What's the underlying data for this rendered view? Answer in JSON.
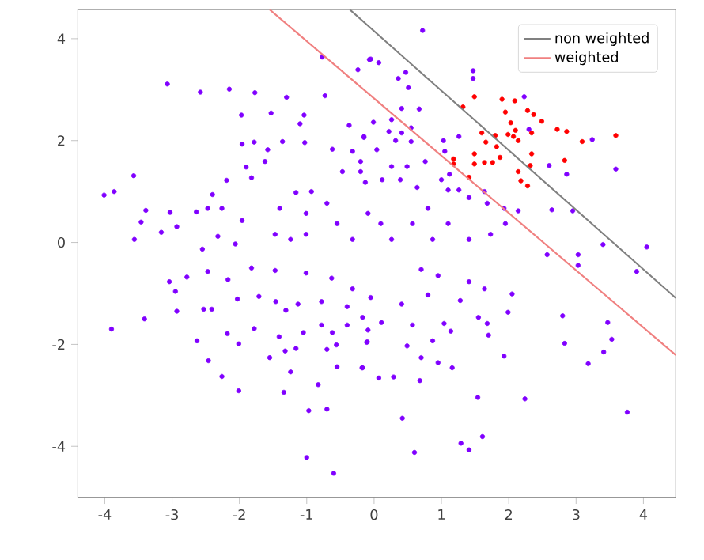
{
  "chart_data": {
    "type": "scatter",
    "xlim": [
      -4.4,
      4.48
    ],
    "ylim": [
      -5,
      4.57
    ],
    "xticks": [
      -4,
      -3,
      -2,
      -1,
      0,
      1,
      2,
      3,
      4
    ],
    "yticks": [
      -4,
      -2,
      0,
      2,
      4
    ],
    "legend": "top right",
    "series": [
      {
        "color": "#8000ff",
        "marker": "circle",
        "x": [
          -3.07,
          -2.58,
          -2.15,
          -1.77,
          -0.77,
          -0.24,
          -0.07,
          -1.97,
          -1.53,
          -1.3,
          -1.04,
          -1.1,
          -0.73,
          -0.37,
          -0.15,
          -1.96,
          -1.78,
          -1.58,
          -1.36,
          -1.03,
          -0.62,
          -1.62,
          -1.9,
          -2.19,
          -1.82,
          -3.57,
          -4.01,
          -3.86,
          -3.39,
          -3.46,
          -3.03,
          -2.93,
          -3.16,
          -3.56,
          -2.64,
          -2.4,
          -2.47,
          -2.26,
          -1.96,
          -2.32,
          -2.06,
          -2.55,
          -1.4,
          -1.16,
          -0.93,
          -1.01,
          -0.7,
          -0.55,
          -1.47,
          -1.24,
          -1.01,
          -0.32,
          -0.09,
          -0.2,
          -0.47,
          -0.32,
          0.72,
          -0.05,
          0.07,
          1.47,
          1.47,
          0.47,
          0.36,
          0.51,
          0.67,
          0.41,
          -0.01,
          0.26,
          0.55,
          0.41,
          0.22,
          -0.15,
          0.04,
          0.32,
          0.55,
          1.03,
          1.26,
          1.05,
          0.76,
          0.49,
          0.26,
          -0.2,
          -0.13,
          0.12,
          0.39,
          1.0,
          1.12,
          0.64,
          1.1,
          1.26,
          1.64,
          1.41,
          1.68,
          1.93,
          2.14,
          2.64,
          2.95,
          2.6,
          2.86,
          3.24,
          3.59,
          2.23,
          2.3,
          4.05,
          3.4,
          0.1,
          0.26,
          0.57,
          0.8,
          1.1,
          1.41,
          1.73,
          1.95,
          0.87,
          2.57,
          3.03,
          -3.9,
          -3.41,
          -2.63,
          -2.46,
          -2.26,
          -2.01,
          -2.18,
          -2.01,
          -1.78,
          -1.34,
          -0.97,
          -0.7,
          -0.83,
          -1.0,
          -0.6,
          -3.04,
          -2.95,
          -2.93,
          -2.78,
          -2.53,
          -2.41,
          -2.47,
          -2.17,
          -2.03,
          -1.71,
          -1.46,
          -1.31,
          -1.13,
          -1.41,
          -1.55,
          -1.32,
          -1.16,
          -1.24,
          -1.05,
          -0.78,
          -0.62,
          -0.56,
          -0.55,
          -0.7,
          -0.4,
          -0.18,
          -0.1,
          -1.82,
          -1.47,
          -1.01,
          -0.63,
          -0.32,
          -0.78,
          -0.4,
          0.7,
          0.95,
          1.41,
          1.64,
          2.05,
          3.03,
          3.9,
          2.8,
          2.83,
          3.47,
          3.53,
          3.41,
          3.18,
          3.76,
          2.24,
          1.54,
          1.93,
          1.61,
          1.29,
          1.41,
          0.6,
          0.42,
          0.68,
          0.95,
          1.16,
          0.29,
          0.07,
          -0.17,
          0.49,
          0.7,
          0.87,
          1.04,
          1.14,
          1.55,
          1.68,
          1.7,
          1.99,
          0.57,
          0.11,
          -0.09,
          -0.11,
          0.41,
          0.8,
          1.28,
          -0.17,
          -0.05
        ],
        "values": [
          3.11,
          2.95,
          3.01,
          2.94,
          3.64,
          3.39,
          3.59,
          2.5,
          2.54,
          2.85,
          2.5,
          2.33,
          2.88,
          2.3,
          2.08,
          1.93,
          1.97,
          1.82,
          1.98,
          1.96,
          1.83,
          1.59,
          1.48,
          1.22,
          1.27,
          1.31,
          0.93,
          1.0,
          0.63,
          0.4,
          0.59,
          0.31,
          0.2,
          0.06,
          0.6,
          0.94,
          0.67,
          0.67,
          0.43,
          0.12,
          -0.03,
          -0.13,
          0.67,
          0.98,
          1.0,
          0.57,
          0.77,
          0.37,
          0.16,
          0.06,
          0.16,
          0.06,
          0.57,
          1.39,
          1.39,
          1.79,
          4.16,
          3.6,
          3.53,
          3.37,
          3.22,
          3.34,
          3.22,
          3.04,
          2.62,
          2.63,
          2.36,
          2.41,
          2.25,
          2.15,
          2.18,
          2.06,
          1.82,
          2.0,
          1.98,
          2.0,
          2.08,
          1.79,
          1.59,
          1.49,
          1.49,
          1.59,
          1.18,
          1.23,
          1.23,
          1.23,
          1.34,
          1.08,
          1.03,
          1.03,
          1.0,
          0.88,
          0.77,
          0.67,
          0.62,
          0.64,
          0.62,
          1.51,
          1.34,
          2.02,
          1.44,
          2.86,
          2.22,
          -0.09,
          -0.04,
          0.37,
          0.06,
          0.37,
          0.67,
          0.37,
          0.06,
          0.16,
          0.37,
          0.06,
          -0.24,
          -0.24,
          -1.7,
          -1.5,
          -1.93,
          -2.32,
          -2.63,
          -2.91,
          -1.79,
          -1.99,
          -1.69,
          -2.94,
          -3.3,
          -3.27,
          -2.79,
          -4.22,
          -4.53,
          -0.77,
          -0.96,
          -1.35,
          -0.68,
          -1.31,
          -1.31,
          -0.57,
          -0.73,
          -1.11,
          -1.06,
          -1.16,
          -1.33,
          -1.21,
          -1.85,
          -2.26,
          -2.13,
          -2.08,
          -2.54,
          -1.77,
          -1.62,
          -1.77,
          -2.01,
          -2.44,
          -2.1,
          -1.62,
          -2.46,
          -1.95,
          -0.5,
          -0.55,
          -0.6,
          -0.7,
          -0.91,
          -1.16,
          -1.26,
          -0.53,
          -0.65,
          -0.77,
          -0.91,
          -1.01,
          -0.45,
          -0.57,
          -1.44,
          -1.98,
          -1.57,
          -1.9,
          -2.15,
          -2.38,
          -3.33,
          -3.07,
          -3.04,
          -2.23,
          -3.81,
          -3.94,
          -4.07,
          -4.12,
          -3.45,
          -2.71,
          -2.36,
          -2.46,
          -2.64,
          -2.66,
          -2.46,
          -2.03,
          -2.26,
          -1.93,
          -1.59,
          -1.74,
          -1.47,
          -1.59,
          -1.82,
          -1.37,
          -1.62,
          -1.57,
          -1.72,
          -1.96,
          -1.21,
          -1.03,
          -1.14,
          -1.47,
          -1.08
        ]
      },
      {
        "color": "#ff0000",
        "marker": "circle",
        "x": [
          1.49,
          1.32,
          1.9,
          2.09,
          2.28,
          2.37,
          2.49,
          1.95,
          2.03,
          2.1,
          2.07,
          1.99,
          2.14,
          2.34,
          1.8,
          1.6,
          1.66,
          1.82,
          2.72,
          2.86,
          3.09,
          3.59,
          2.83,
          2.34,
          2.32,
          2.14,
          2.18,
          2.28,
          1.87,
          1.76,
          1.64,
          1.49,
          1.49,
          1.18,
          1.18,
          1.41
        ],
        "values": [
          2.86,
          2.66,
          2.81,
          2.78,
          2.59,
          2.51,
          2.38,
          2.56,
          2.35,
          2.2,
          2.08,
          2.12,
          2.0,
          2.15,
          2.1,
          2.15,
          1.97,
          1.88,
          2.22,
          2.18,
          1.98,
          2.1,
          1.61,
          1.74,
          1.51,
          1.39,
          1.21,
          1.11,
          1.67,
          1.57,
          1.57,
          1.54,
          1.74,
          1.64,
          1.54,
          1.28
        ]
      },
      {
        "type": "line",
        "name": "non weighted",
        "color": "#808080",
        "marker": "none",
        "x": [
          -0.36,
          4.48
        ],
        "values": [
          4.57,
          -1.09
        ]
      },
      {
        "type": "line",
        "name": "weighted",
        "color": "#f08080",
        "marker": "none",
        "x": [
          -1.55,
          4.48
        ],
        "values": [
          4.57,
          -2.21
        ]
      }
    ]
  }
}
